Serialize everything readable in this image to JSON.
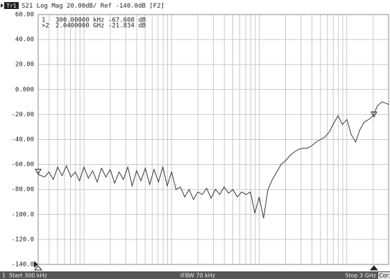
{
  "chart_data": {
    "type": "line",
    "trace_label": "Tr1",
    "title": "S21 Log Mag 20.00dB/ Ref -140.0dB [F2]",
    "x_scale": "log",
    "grid": true,
    "xlim": [
      300000,
      3000000000
    ],
    "ylim": [
      -140,
      60
    ],
    "yticks": [
      {
        "value": 60,
        "label": "60.00"
      },
      {
        "value": 40,
        "label": "40.00"
      },
      {
        "value": 20,
        "label": "20.00"
      },
      {
        "value": 0,
        "label": "0.000"
      },
      {
        "value": -20,
        "label": "-20.00"
      },
      {
        "value": -40,
        "label": "-40.00"
      },
      {
        "value": -60,
        "label": "-60.00"
      },
      {
        "value": -80,
        "label": "-80.00"
      },
      {
        "value": -100,
        "label": "-100.0"
      },
      {
        "value": -120,
        "label": "-120.0"
      },
      {
        "value": -140,
        "label": "-140.0"
      }
    ],
    "xticks": [
      400000,
      500000,
      600000,
      700000,
      800000,
      900000,
      1000000,
      2000000,
      3000000,
      4000000,
      5000000,
      6000000,
      7000000,
      8000000,
      9000000,
      10000000,
      20000000,
      30000000,
      40000000,
      50000000,
      60000000,
      70000000,
      80000000,
      90000000,
      100000000,
      200000000,
      300000000,
      400000000,
      500000000,
      600000000,
      700000000,
      800000000,
      900000000,
      1000000000,
      2000000000
    ],
    "series": [
      {
        "name": "S21",
        "color": "#333333",
        "x": [
          300000,
          354800,
          398100,
          446700,
          501200,
          562300,
          631000,
          707900,
          794300,
          891300,
          1000000,
          1122000,
          1259000,
          1413000,
          1585000,
          1778000,
          1995000,
          2239000,
          2512000,
          2818000,
          3162000,
          3548000,
          3981000,
          4467000,
          5012000,
          5623000,
          6310000,
          7079000,
          7943000,
          8913000,
          10000000,
          11220000,
          12590000,
          14130000,
          15850000,
          17780000,
          19950000,
          22390000,
          25120000,
          28180000,
          31620000,
          35480000,
          39810000,
          44670000,
          50120000,
          56230000,
          63100000,
          70790000,
          79430000,
          89130000,
          100000000,
          112200000,
          125900000,
          141300000,
          158500000,
          177800000,
          199500000,
          223900000,
          251200000,
          281800000,
          316200000,
          354800000,
          398100000,
          446700000,
          501200000,
          562300000,
          631000000,
          707900000,
          794300000,
          891300000,
          1000000000,
          1122000000,
          1259000000,
          1413000000,
          1585000000,
          1778000000,
          1995000000,
          2239000000,
          2512000000,
          2818000000,
          3000000000
        ],
        "values": [
          -68,
          -70,
          -66,
          -72,
          -62,
          -69,
          -61,
          -70,
          -66,
          -73,
          -62,
          -71,
          -65,
          -74,
          -63,
          -70,
          -64,
          -75,
          -66,
          -72,
          -62,
          -77,
          -65,
          -73,
          -63,
          -76,
          -64,
          -74,
          -62,
          -77,
          -66,
          -80,
          -78,
          -86,
          -80,
          -88,
          -82,
          -84,
          -79,
          -87,
          -80,
          -84,
          -78,
          -83,
          -80,
          -86,
          -82,
          -84,
          -82,
          -99,
          -86,
          -103,
          -80,
          -72,
          -66,
          -60,
          -57,
          -53,
          -50,
          -48,
          -47,
          -47,
          -45,
          -42,
          -40,
          -38,
          -34,
          -27,
          -21,
          -28,
          -24,
          -36,
          -42,
          -32,
          -26,
          -24,
          -21,
          -13,
          -10,
          -11,
          -12
        ]
      }
    ],
    "markers": [
      {
        "id": "1",
        "readout": "300.00000 kHz -67.608 dB",
        "x": 300000,
        "value": -67.608
      },
      {
        "id": ">2",
        "readout": "2.0400000 GHz -21.834 dB",
        "x": 2040000000,
        "value": -21.834
      }
    ],
    "status": {
      "channel": "1",
      "start": "Start 300 kHz",
      "ifbw": "IFBW 70 kHz",
      "stop": "Stop 3 GHz",
      "cor": "Cor"
    }
  }
}
